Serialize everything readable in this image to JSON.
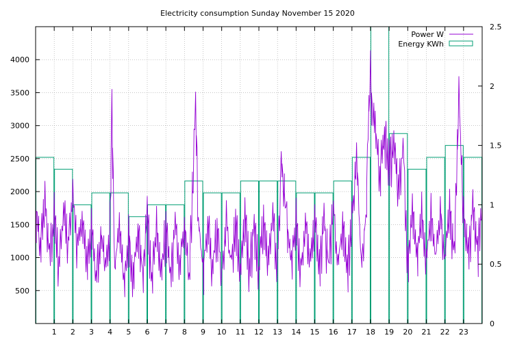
{
  "chart_data": {
    "type": "bar",
    "title": "Electricity consumption Sunday November 15 2020",
    "xlabel": "",
    "ylabel": "",
    "y2label": "",
    "grid": true,
    "legend_position": "top-right",
    "x_range": [
      0,
      24
    ],
    "x_ticks": [
      1,
      2,
      3,
      4,
      5,
      6,
      7,
      8,
      9,
      10,
      11,
      12,
      13,
      14,
      15,
      16,
      17,
      18,
      19,
      20,
      21,
      22,
      23
    ],
    "y_range": [
      0,
      4500
    ],
    "y_ticks": [
      500,
      1000,
      1500,
      2000,
      2500,
      3000,
      3500,
      4000
    ],
    "y2_range": [
      0,
      2.5
    ],
    "y2_ticks": [
      0,
      0.5,
      1,
      1.5,
      2,
      2.5
    ],
    "y2_tick_labels": [
      "0",
      "0.5",
      "1",
      "1.5",
      "2",
      "2.5"
    ],
    "colors": {
      "power": "#9400d3",
      "energy": "#009e73",
      "grid": "#a0a0a0"
    },
    "series": [
      {
        "name": "Energy KWh",
        "axis": "right",
        "style": "steps",
        "categories": [
          "0",
          "1",
          "2",
          "3",
          "4",
          "5",
          "6",
          "7",
          "8",
          "9",
          "10",
          "11",
          "12",
          "13",
          "14",
          "15",
          "16",
          "17",
          "18",
          "19",
          "20",
          "21",
          "22",
          "23"
        ],
        "values": [
          1.4,
          1.3,
          1.0,
          1.1,
          1.1,
          0.9,
          1.0,
          1.0,
          1.2,
          1.1,
          1.1,
          1.2,
          1.2,
          1.2,
          1.1,
          1.1,
          1.2,
          1.4,
          2.5,
          1.6,
          1.3,
          1.4,
          1.5,
          1.4
        ]
      },
      {
        "name": "Power W",
        "axis": "left",
        "style": "line",
        "x": [
          0,
          0.25,
          0.5,
          0.75,
          1,
          1.25,
          1.5,
          1.75,
          2,
          2.25,
          2.5,
          2.75,
          3,
          3.25,
          3.5,
          3.75,
          4,
          4.1,
          4.25,
          4.5,
          4.75,
          5,
          5.25,
          5.5,
          5.75,
          6,
          6.25,
          6.5,
          6.75,
          7,
          7.25,
          7.5,
          7.75,
          8,
          8.25,
          8.6,
          8.75,
          9,
          9.25,
          9.5,
          9.75,
          10,
          10.25,
          10.5,
          10.75,
          11,
          11.25,
          11.5,
          11.75,
          12,
          12.25,
          12.5,
          12.75,
          13,
          13.2,
          13.5,
          13.75,
          14,
          14.25,
          14.5,
          14.75,
          15,
          15.25,
          15.5,
          15.75,
          16,
          16.25,
          16.5,
          16.75,
          17,
          17.25,
          17.5,
          17.75,
          18,
          18.1,
          18.25,
          18.5,
          18.75,
          19,
          19.25,
          19.5,
          19.75,
          20,
          20.25,
          20.5,
          20.75,
          21,
          21.25,
          21.5,
          21.75,
          22,
          22.25,
          22.5,
          22.75,
          23,
          23.25,
          23.5,
          23.75,
          24
        ],
        "values": [
          1800,
          1200,
          1900,
          1000,
          1700,
          900,
          1700,
          1300,
          1900,
          1200,
          1600,
          900,
          1450,
          700,
          1450,
          800,
          1550,
          3270,
          850,
          1450,
          650,
          1450,
          750,
          1500,
          800,
          1650,
          700,
          1500,
          750,
          1500,
          700,
          1550,
          800,
          1550,
          750,
          3270,
          1600,
          800,
          1550,
          850,
          1550,
          750,
          1550,
          900,
          1600,
          800,
          1700,
          850,
          1550,
          800,
          1600,
          900,
          1650,
          850,
          2570,
          1550,
          850,
          1600,
          800,
          1600,
          850,
          1550,
          850,
          1600,
          900,
          1800,
          900,
          1550,
          850,
          1600,
          2570,
          900,
          1650,
          4000,
          3000,
          3000,
          2300,
          2900,
          2500,
          2700,
          2000,
          2750,
          900,
          1800,
          1000,
          1700,
          950,
          1700,
          1000,
          1800,
          1000,
          1800,
          1050,
          3430,
          1700,
          1050,
          1800,
          1100,
          1800
        ]
      }
    ]
  }
}
